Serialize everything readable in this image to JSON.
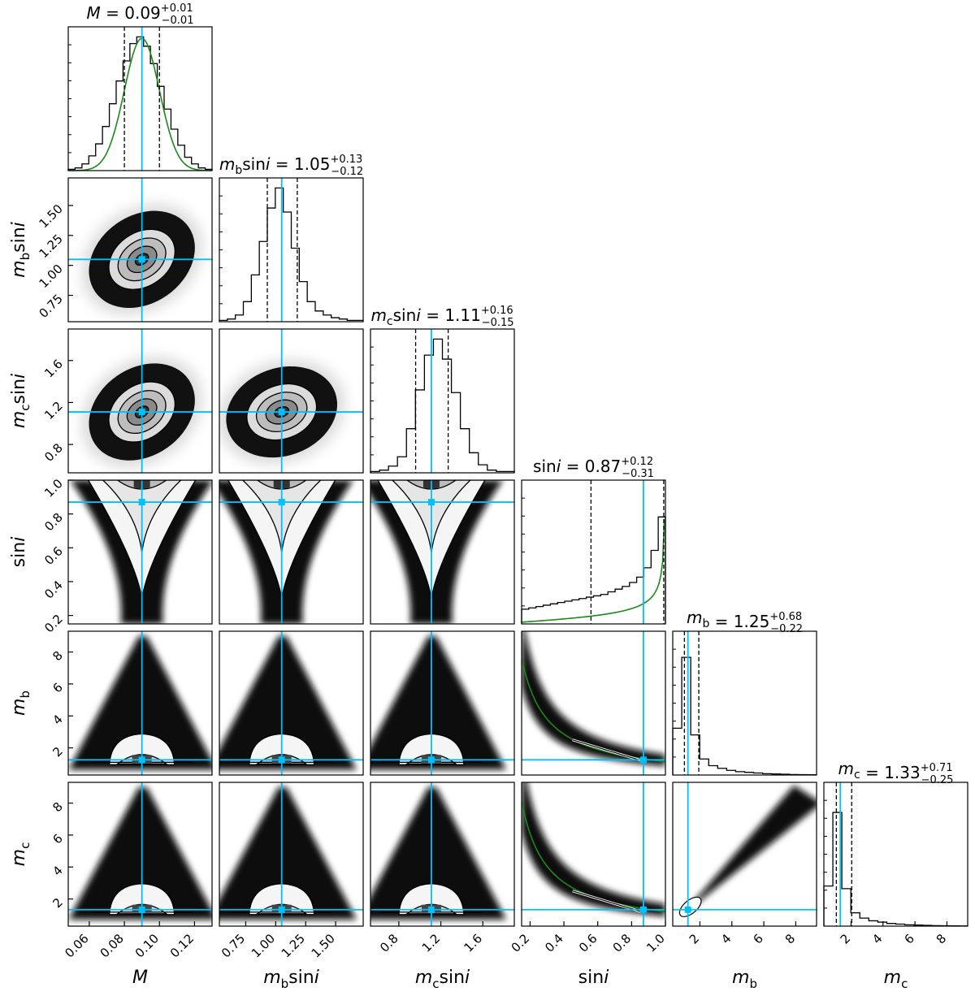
{
  "chart_data": {
    "type": "corner",
    "parameters": [
      {
        "label_main": "M",
        "label_sub": "",
        "label_tail": "",
        "title_value": "0.09",
        "title_plus": "+0.01",
        "title_minus": "−0.01",
        "median": 0.09,
        "q16": 0.08,
        "q84": 0.1,
        "truth": 0.09,
        "range": [
          0.048,
          0.13
        ],
        "ticks": [
          "0.06",
          "0.08",
          "0.10",
          "0.12"
        ],
        "tick_values": [
          0.06,
          0.08,
          0.1,
          0.12
        ]
      },
      {
        "label_main": "m",
        "label_sub": "b",
        "label_tail": "sini",
        "title_value": "1.05",
        "title_plus": "+0.13",
        "title_minus": "−0.12",
        "median": 1.05,
        "q16": 0.93,
        "q84": 1.18,
        "truth": 1.05,
        "range": [
          0.53,
          1.73
        ],
        "ticks": [
          "0.75",
          "1.00",
          "1.25",
          "1.50"
        ],
        "tick_values": [
          0.75,
          1.0,
          1.25,
          1.5
        ]
      },
      {
        "label_main": "m",
        "label_sub": "c",
        "label_tail": "sini",
        "title_value": "1.11",
        "title_plus": "+0.16",
        "title_minus": "−0.15",
        "median": 1.11,
        "q16": 0.96,
        "q84": 1.27,
        "truth": 1.11,
        "range": [
          0.53,
          1.9
        ],
        "ticks": [
          "0.8",
          "1.2",
          "1.6"
        ],
        "tick_values": [
          0.8,
          1.2,
          1.6
        ]
      },
      {
        "label_main": "",
        "label_sub": "",
        "label_tail": "sini",
        "title_value": "0.87",
        "title_plus": "+0.12",
        "title_minus": "−0.31",
        "median": 0.87,
        "q16": 0.56,
        "q84": 0.99,
        "truth": 0.87,
        "range": [
          0.15,
          1.0
        ],
        "ticks": [
          "0.2",
          "0.4",
          "0.6",
          "0.8",
          "1.0"
        ],
        "tick_values": [
          0.2,
          0.4,
          0.6,
          0.8,
          1.0
        ]
      },
      {
        "label_main": "m",
        "label_sub": "b",
        "label_tail": "",
        "title_value": "1.25",
        "title_plus": "+0.68",
        "title_minus": "−0.22",
        "median": 1.25,
        "q16": 1.03,
        "q84": 1.93,
        "truth": 1.25,
        "range": [
          0.3,
          9.3
        ],
        "ticks": [
          "2",
          "4",
          "6",
          "8"
        ],
        "tick_values": [
          2,
          4,
          6,
          8
        ]
      },
      {
        "label_main": "m",
        "label_sub": "c",
        "label_tail": "",
        "title_value": "1.33",
        "title_plus": "+0.71",
        "title_minus": "−0.25",
        "median": 1.33,
        "q16": 1.08,
        "q84": 2.04,
        "truth": 1.33,
        "range": [
          0.3,
          9.3
        ],
        "ticks": [
          "2",
          "4",
          "6",
          "8"
        ],
        "tick_values": [
          2,
          4,
          6,
          8
        ]
      }
    ],
    "histograms": [
      [
        0.01,
        0.02,
        0.05,
        0.11,
        0.2,
        0.33,
        0.5,
        0.67,
        0.82,
        0.95,
        1.0,
        0.93,
        0.8,
        0.63,
        0.46,
        0.31,
        0.19,
        0.1,
        0.05,
        0.02,
        0.01
      ],
      [
        0.01,
        0.02,
        0.05,
        0.15,
        0.35,
        0.6,
        0.85,
        1.0,
        0.82,
        0.55,
        0.3,
        0.15,
        0.08,
        0.05,
        0.03,
        0.02,
        0.01,
        0.01
      ],
      [
        0.01,
        0.02,
        0.05,
        0.12,
        0.33,
        0.62,
        0.88,
        1.0,
        0.85,
        0.6,
        0.33,
        0.15,
        0.06,
        0.02,
        0.01,
        0.01
      ],
      [
        0.11,
        0.12,
        0.13,
        0.14,
        0.15,
        0.16,
        0.17,
        0.18,
        0.19,
        0.2,
        0.21,
        0.22,
        0.24,
        0.26,
        0.28,
        0.31,
        0.35,
        0.42,
        0.55,
        0.8
      ],
      [
        0.35,
        0.88,
        0.3,
        0.12,
        0.07,
        0.05,
        0.035,
        0.025,
        0.02,
        0.015,
        0.01,
        0.008,
        0.006,
        0.004,
        0.003,
        0.002
      ],
      [
        0.3,
        0.85,
        0.28,
        0.1,
        0.06,
        0.04,
        0.03,
        0.02,
        0.015,
        0.01,
        0.008,
        0.006,
        0.004,
        0.003,
        0.002,
        0.001
      ]
    ],
    "gaussian_fit_on": [
      0
    ],
    "fit_overlay_on": [
      3
    ],
    "truth_color": "#00bfff",
    "fit_color": "#1a8a1a",
    "grid": false,
    "legend": "none"
  }
}
